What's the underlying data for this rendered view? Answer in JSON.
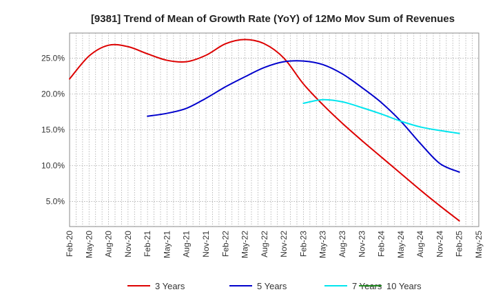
{
  "chart_data": {
    "type": "line",
    "title": "[9381]  Trend of Mean of Growth Rate (YoY) of 12Mo Mov Sum of Revenues",
    "xlabel": "",
    "ylabel": "",
    "ylim": [
      1.5,
      28.5
    ],
    "y_ticks": [
      5,
      10,
      15,
      20,
      25
    ],
    "y_tick_labels": [
      "5.0%",
      "10.0%",
      "15.0%",
      "20.0%",
      "25.0%"
    ],
    "x_tick_labels": [
      "Feb-20",
      "May-20",
      "Aug-20",
      "Nov-20",
      "Feb-21",
      "May-21",
      "Aug-21",
      "Nov-21",
      "Feb-22",
      "May-22",
      "Aug-22",
      "Nov-22",
      "Feb-23",
      "May-23",
      "Aug-23",
      "Nov-23",
      "Feb-24",
      "May-24",
      "Aug-24",
      "Nov-24",
      "Feb-25",
      "May-25"
    ],
    "grid": true,
    "legend_position": "bottom",
    "series": [
      {
        "name": "3 Years",
        "color": "#dd0000",
        "points": [
          [
            0,
            22.1
          ],
          [
            1,
            25.3
          ],
          [
            2,
            26.8
          ],
          [
            3,
            26.6
          ],
          [
            4,
            25.6
          ],
          [
            5,
            24.7
          ],
          [
            6,
            24.5
          ],
          [
            7,
            25.4
          ],
          [
            8,
            27.0
          ],
          [
            9,
            27.6
          ],
          [
            10,
            27.0
          ],
          [
            11,
            25.0
          ],
          [
            12,
            21.4
          ],
          [
            13,
            18.5
          ],
          [
            14,
            15.9
          ],
          [
            15,
            13.5
          ],
          [
            16,
            11.2
          ],
          [
            17,
            8.9
          ],
          [
            18,
            6.6
          ],
          [
            19,
            4.4
          ],
          [
            20,
            2.3
          ]
        ]
      },
      {
        "name": "5 Years",
        "color": "#0000cc",
        "points": [
          [
            4,
            16.9
          ],
          [
            5,
            17.3
          ],
          [
            6,
            18.0
          ],
          [
            7,
            19.4
          ],
          [
            8,
            21.0
          ],
          [
            9,
            22.4
          ],
          [
            10,
            23.7
          ],
          [
            11,
            24.5
          ],
          [
            12,
            24.6
          ],
          [
            13,
            24.1
          ],
          [
            14,
            22.8
          ],
          [
            15,
            20.9
          ],
          [
            16,
            18.8
          ],
          [
            17,
            16.2
          ],
          [
            18,
            13.1
          ],
          [
            19,
            10.3
          ],
          [
            20,
            9.1
          ]
        ]
      },
      {
        "name": "7 Years",
        "color": "#00e5ee",
        "points": [
          [
            12,
            18.7
          ],
          [
            13,
            19.2
          ],
          [
            14,
            18.9
          ],
          [
            15,
            18.1
          ],
          [
            16,
            17.2
          ],
          [
            17,
            16.2
          ],
          [
            18,
            15.4
          ],
          [
            19,
            14.9
          ],
          [
            20,
            14.5
          ]
        ]
      },
      {
        "name": "10 Years",
        "color": "#228b22",
        "points": []
      }
    ]
  }
}
